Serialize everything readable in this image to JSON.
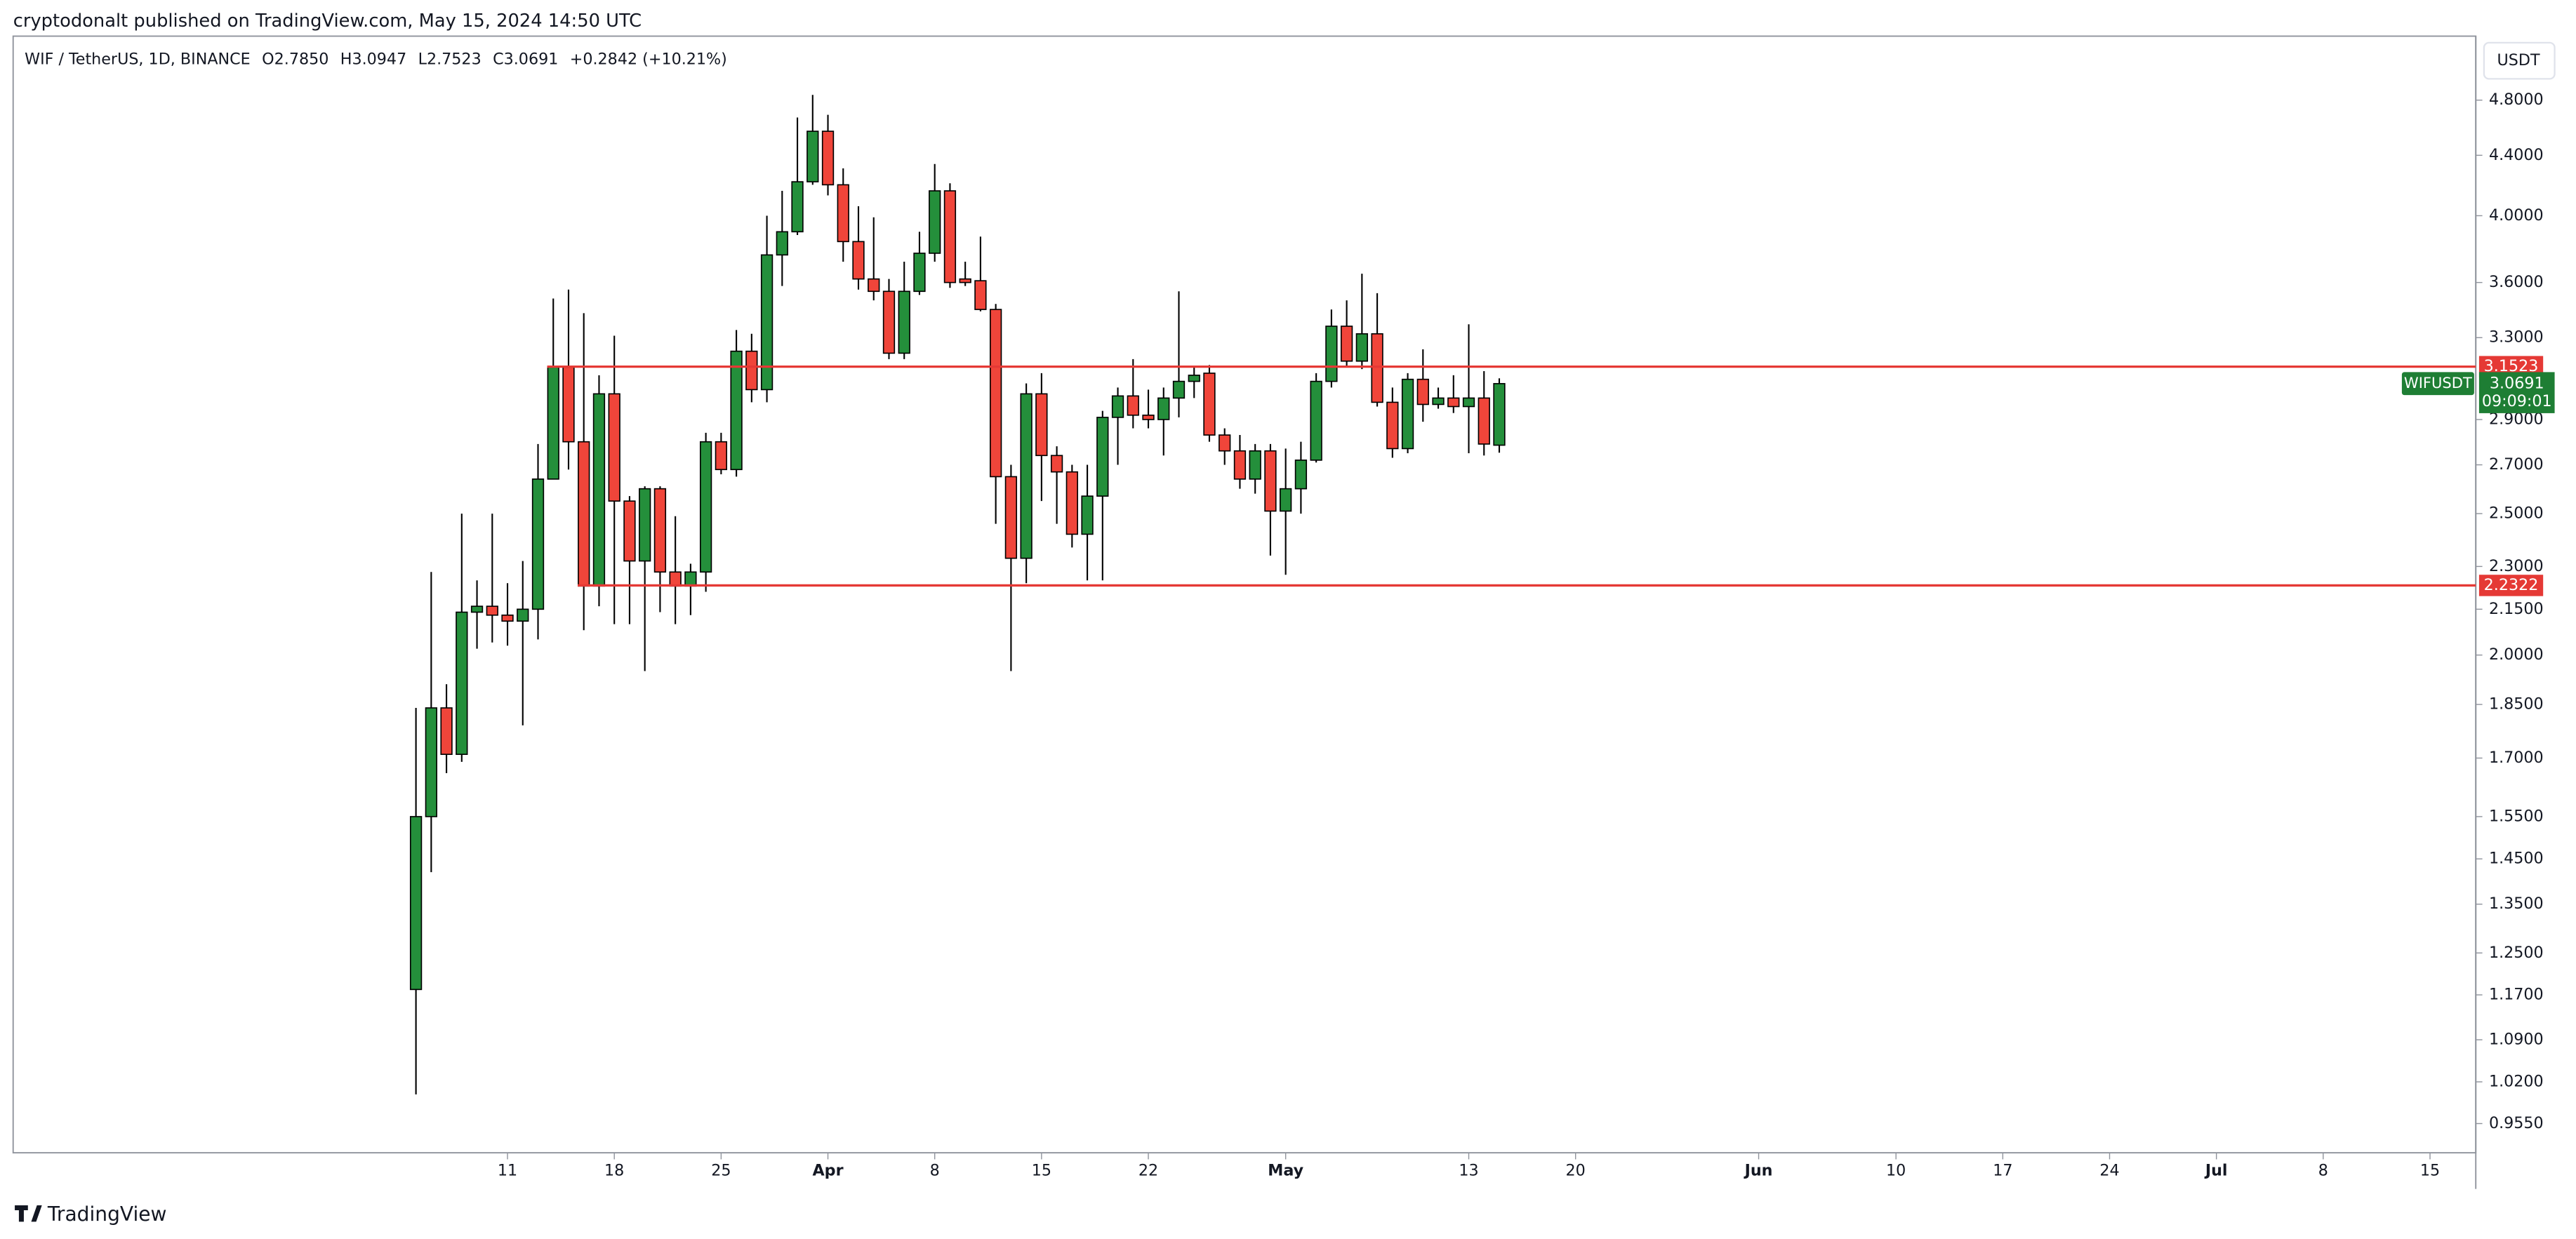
{
  "header": {
    "text": "cryptodonalt published on TradingView.com, May 15, 2024 14:50 UTC"
  },
  "footer": {
    "brand": "TradingView"
  },
  "chart_data": {
    "type": "candlestick",
    "legend_items": [
      "WIF / TetherUS, 1D, BINANCE",
      "O2.7850",
      "H3.0947",
      "L2.7523",
      "C3.0691",
      "+0.2842 (+10.21%)"
    ],
    "currency": "USDT",
    "up_color": "#248f3b",
    "down_color": "#f0453a",
    "log_scale": true,
    "ylim": [
      0.912,
      5.31
    ],
    "yticks": [
      {
        "value": 4.8,
        "label": "4.8000"
      },
      {
        "value": 4.4,
        "label": "4.4000"
      },
      {
        "value": 4.0,
        "label": "4.0000"
      },
      {
        "value": 3.6,
        "label": "3.6000"
      },
      {
        "value": 3.3,
        "label": "3.3000"
      },
      {
        "value": 2.9,
        "label": "2.9000"
      },
      {
        "value": 2.7,
        "label": "2.7000"
      },
      {
        "value": 2.5,
        "label": "2.5000"
      },
      {
        "value": 2.3,
        "label": "2.3000"
      },
      {
        "value": 2.15,
        "label": "2.1500"
      },
      {
        "value": 2.0,
        "label": "2.0000"
      },
      {
        "value": 1.85,
        "label": "1.8500"
      },
      {
        "value": 1.7,
        "label": "1.7000"
      },
      {
        "value": 1.55,
        "label": "1.5500"
      },
      {
        "value": 1.45,
        "label": "1.4500"
      },
      {
        "value": 1.35,
        "label": "1.3500"
      },
      {
        "value": 1.25,
        "label": "1.2500"
      },
      {
        "value": 1.17,
        "label": "1.1700"
      },
      {
        "value": 1.09,
        "label": "1.0900"
      },
      {
        "value": 1.02,
        "label": "1.0200"
      },
      {
        "value": 0.955,
        "label": "0.9550"
      }
    ],
    "xlim": [
      -26.4,
      135
    ],
    "xticks": [
      {
        "value": 6,
        "label": "11"
      },
      {
        "value": 13,
        "label": "18"
      },
      {
        "value": 20,
        "label": "25"
      },
      {
        "value": 27,
        "label": "Apr"
      },
      {
        "value": 34,
        "label": "8"
      },
      {
        "value": 41,
        "label": "15"
      },
      {
        "value": 48,
        "label": "22"
      },
      {
        "value": 57,
        "label": "May"
      },
      {
        "value": 69,
        "label": "13"
      },
      {
        "value": 76,
        "label": "20"
      },
      {
        "value": 88,
        "label": "Jun"
      },
      {
        "value": 97,
        "label": "10"
      },
      {
        "value": 104,
        "label": "17"
      },
      {
        "value": 111,
        "label": "24"
      },
      {
        "value": 118,
        "label": "Jul"
      },
      {
        "value": 125,
        "label": "8"
      },
      {
        "value": 132,
        "label": "15"
      }
    ],
    "open": [
      1.18,
      1.55,
      1.84,
      1.71,
      2.14,
      2.16,
      2.13,
      2.11,
      2.15,
      2.64,
      3.15,
      2.8,
      2.23,
      3.02,
      2.55,
      2.32,
      2.6,
      2.28,
      2.23,
      2.28,
      2.8,
      2.68,
      3.23,
      3.04,
      3.76,
      3.9,
      4.22,
      4.57,
      4.2,
      3.84,
      3.62,
      3.55,
      3.22,
      3.55,
      3.77,
      4.16,
      3.62,
      3.61,
      3.45,
      2.65,
      2.33,
      3.02,
      2.74,
      2.67,
      2.42,
      2.57,
      2.91,
      3.01,
      2.92,
      2.9,
      3.0,
      3.08,
      3.12,
      2.83,
      2.76,
      2.64,
      2.76,
      2.51,
      2.6,
      2.72,
      3.08,
      3.36,
      3.18,
      3.32,
      2.98,
      2.77,
      3.09,
      2.97,
      3.0,
      2.96,
      3.0,
      2.785
    ],
    "high": [
      1.84,
      2.28,
      1.91,
      2.5,
      2.25,
      2.5,
      2.24,
      2.32,
      2.79,
      3.51,
      3.56,
      3.43,
      3.11,
      3.31,
      2.57,
      2.61,
      2.61,
      2.49,
      2.31,
      2.84,
      2.84,
      3.34,
      3.32,
      4.0,
      4.16,
      4.67,
      4.84,
      4.69,
      4.31,
      4.06,
      3.99,
      3.62,
      3.72,
      3.9,
      4.34,
      4.21,
      3.72,
      3.87,
      3.48,
      2.7,
      3.07,
      3.12,
      2.78,
      2.7,
      2.7,
      2.94,
      3.05,
      3.19,
      3.04,
      3.05,
      3.55,
      3.15,
      3.16,
      2.86,
      2.83,
      2.79,
      2.79,
      2.77,
      2.8,
      3.12,
      3.45,
      3.5,
      3.65,
      3.54,
      3.05,
      3.12,
      3.24,
      3.05,
      3.11,
      3.37,
      3.13,
      3.0947
    ],
    "low": [
      1.0,
      1.42,
      1.66,
      1.69,
      2.02,
      2.04,
      2.03,
      1.79,
      2.05,
      2.64,
      2.68,
      2.08,
      2.16,
      2.1,
      2.1,
      1.95,
      2.14,
      2.1,
      2.13,
      2.21,
      2.66,
      2.65,
      2.98,
      2.98,
      3.58,
      3.88,
      4.2,
      4.13,
      3.72,
      3.56,
      3.5,
      3.19,
      3.19,
      3.53,
      3.72,
      3.57,
      3.58,
      3.44,
      2.46,
      1.95,
      2.24,
      2.55,
      2.46,
      2.37,
      2.25,
      2.25,
      2.7,
      2.86,
      2.86,
      2.74,
      2.91,
      3.0,
      2.8,
      2.7,
      2.6,
      2.58,
      2.34,
      2.27,
      2.5,
      2.71,
      3.05,
      3.15,
      3.14,
      2.96,
      2.73,
      2.75,
      2.89,
      2.95,
      2.93,
      2.75,
      2.74,
      2.7523
    ],
    "close": [
      1.55,
      1.84,
      1.71,
      2.14,
      2.16,
      2.13,
      2.11,
      2.15,
      2.64,
      3.15,
      2.8,
      2.23,
      3.02,
      2.55,
      2.32,
      2.6,
      2.28,
      2.23,
      2.28,
      2.8,
      2.68,
      3.23,
      3.04,
      3.76,
      3.9,
      4.22,
      4.57,
      4.2,
      3.84,
      3.62,
      3.55,
      3.22,
      3.55,
      3.77,
      4.16,
      3.6,
      3.6,
      3.45,
      2.65,
      2.33,
      3.02,
      2.74,
      2.67,
      2.42,
      2.57,
      2.91,
      3.01,
      2.92,
      2.9,
      3.0,
      3.08,
      3.11,
      2.83,
      2.76,
      2.64,
      2.76,
      2.51,
      2.6,
      2.72,
      3.08,
      3.36,
      3.18,
      3.32,
      2.98,
      2.77,
      3.09,
      2.97,
      3.0,
      2.96,
      3.0,
      2.79,
      3.0691
    ],
    "levels": [
      {
        "value": 3.1523,
        "color": "#e53935"
      },
      {
        "value": 2.2322,
        "color": "#e53935"
      }
    ],
    "last_price": {
      "symbol": "WIFUSDT",
      "value": 3.0691,
      "countdown": "09:09:01",
      "color": "#1e7e34"
    }
  }
}
